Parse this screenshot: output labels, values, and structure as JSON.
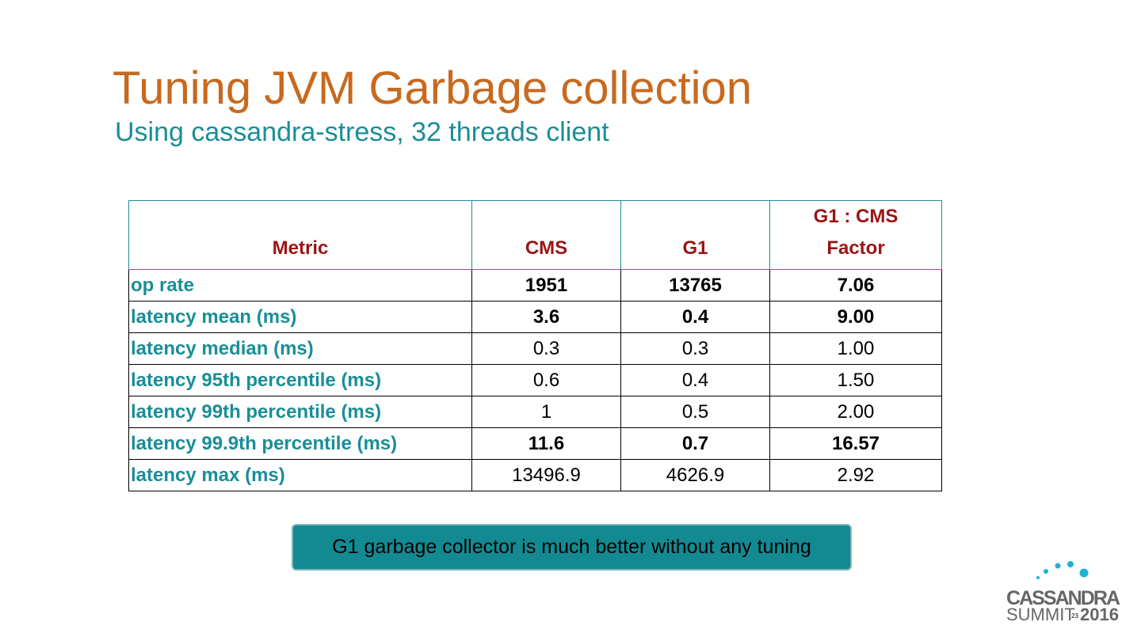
{
  "header": {
    "title": "Tuning JVM Garbage collection",
    "subtitle": "Using cassandra-stress, 32 threads client"
  },
  "table": {
    "columns": [
      "Metric",
      "CMS",
      "G1",
      "G1 : CMS Factor"
    ],
    "rows": [
      {
        "cells": [
          "op rate",
          "1951",
          "13765",
          "7.06"
        ],
        "bold": true
      },
      {
        "cells": [
          "latency mean (ms)",
          "3.6",
          "0.4",
          "9.00"
        ],
        "bold": true
      },
      {
        "cells": [
          "latency median (ms)",
          "0.3",
          "0.3",
          "1.00"
        ],
        "bold": false
      },
      {
        "cells": [
          "latency 95th percentile (ms)",
          "0.6",
          "0.4",
          "1.50"
        ],
        "bold": false
      },
      {
        "cells": [
          "latency 99th percentile (ms)",
          "1",
          "0.5",
          "2.00"
        ],
        "bold": false
      },
      {
        "cells": [
          "latency 99.9th percentile (ms)",
          "11.6",
          "0.7",
          "16.57"
        ],
        "bold": true
      },
      {
        "cells": [
          "latency max (ms)",
          "13496.9",
          "4626.9",
          "2.92"
        ],
        "bold": false
      }
    ]
  },
  "callout": "G1 garbage collector is much better without any tuning",
  "logo": {
    "line1": "CASSANDRA",
    "line2": "SUMMIT",
    "year": "2016"
  },
  "page_number": "23"
}
